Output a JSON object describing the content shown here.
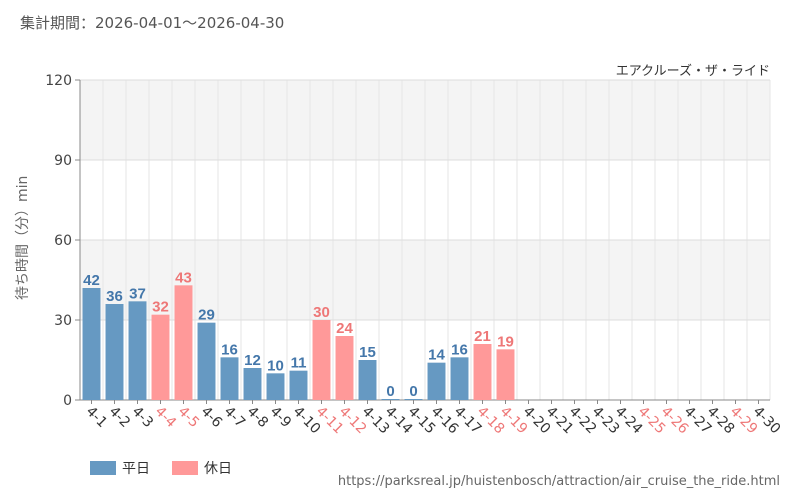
{
  "header": {
    "period_label": "集計期間：2026-04-01～2026-04-30"
  },
  "attraction_name": "エアクルーズ・ザ・ライド",
  "legend": {
    "weekday_label": "平日",
    "holiday_label": "休日"
  },
  "source_url": "https://parksreal.jp/huistenbosch/attraction/air_cruise_the_ride.html",
  "colors": {
    "weekday_bar": "#6699c2",
    "holiday_bar": "#ff9999",
    "weekday_text": "#4477aa",
    "holiday_text": "#ee7777"
  },
  "chart_data": {
    "type": "bar",
    "title": "エアクルーズ・ザ・ライド",
    "ylabel": "待ち時間（分）min",
    "ylim": [
      0,
      120
    ],
    "yticks": [
      0,
      30,
      60,
      90,
      120
    ],
    "grid": true,
    "legend_position": "bottom-left",
    "categories": [
      "4-1",
      "4-2",
      "4-3",
      "4-4",
      "4-5",
      "4-6",
      "4-7",
      "4-8",
      "4-9",
      "4-10",
      "4-11",
      "4-12",
      "4-13",
      "4-14",
      "4-15",
      "4-16",
      "4-17",
      "4-18",
      "4-19",
      "4-20",
      "4-21",
      "4-22",
      "4-23",
      "4-24",
      "4-25",
      "4-26",
      "4-27",
      "4-28",
      "4-29",
      "4-30"
    ],
    "holidays": [
      "4-4",
      "4-5",
      "4-11",
      "4-12",
      "4-18",
      "4-19",
      "4-25",
      "4-26",
      "4-29"
    ],
    "values": [
      42,
      36,
      37,
      32,
      43,
      29,
      16,
      12,
      10,
      11,
      30,
      24,
      15,
      0,
      0,
      14,
      16,
      21,
      19,
      null,
      null,
      null,
      null,
      null,
      null,
      null,
      null,
      null,
      null,
      null
    ]
  }
}
